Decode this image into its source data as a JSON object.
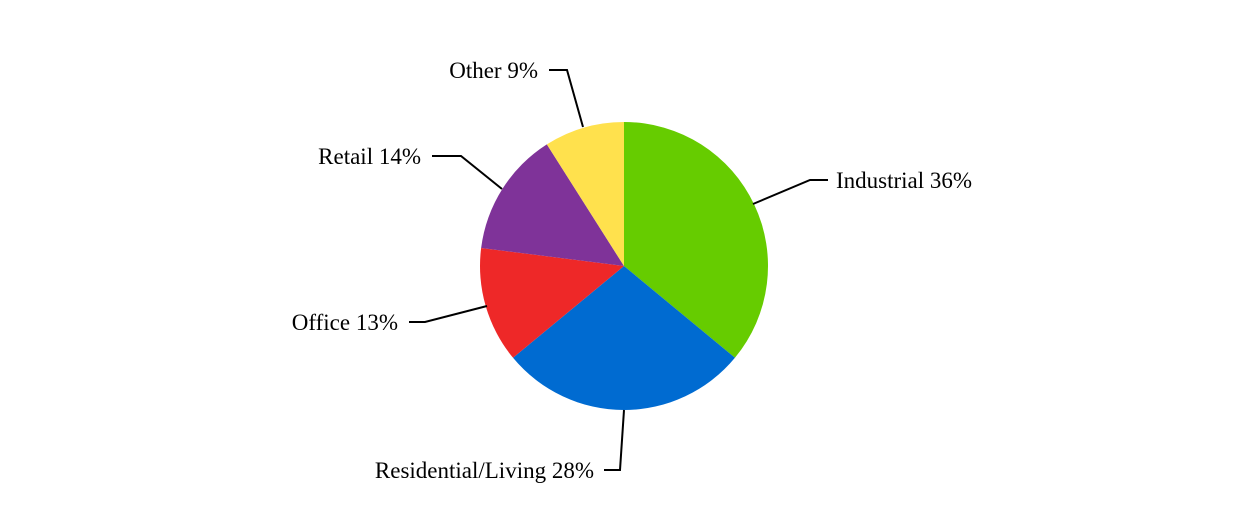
{
  "chart_data": {
    "type": "pie",
    "title": "",
    "categories": [
      "Industrial",
      "Residential/Living",
      "Office",
      "Retail",
      "Other"
    ],
    "values": [
      36,
      28,
      13,
      14,
      9
    ],
    "unit": "%",
    "colors": [
      "#66cc00",
      "#006bd1",
      "#ee2828",
      "#7f3399",
      "#ffe14d"
    ],
    "labels": [
      "Industrial 36%",
      "Residential/Living 28%",
      "Office 13%",
      "Retail 14%",
      "Other 9%"
    ],
    "start_angle_deg": 0,
    "direction": "clockwise",
    "legend": "none (outside labels with leader lines)"
  }
}
